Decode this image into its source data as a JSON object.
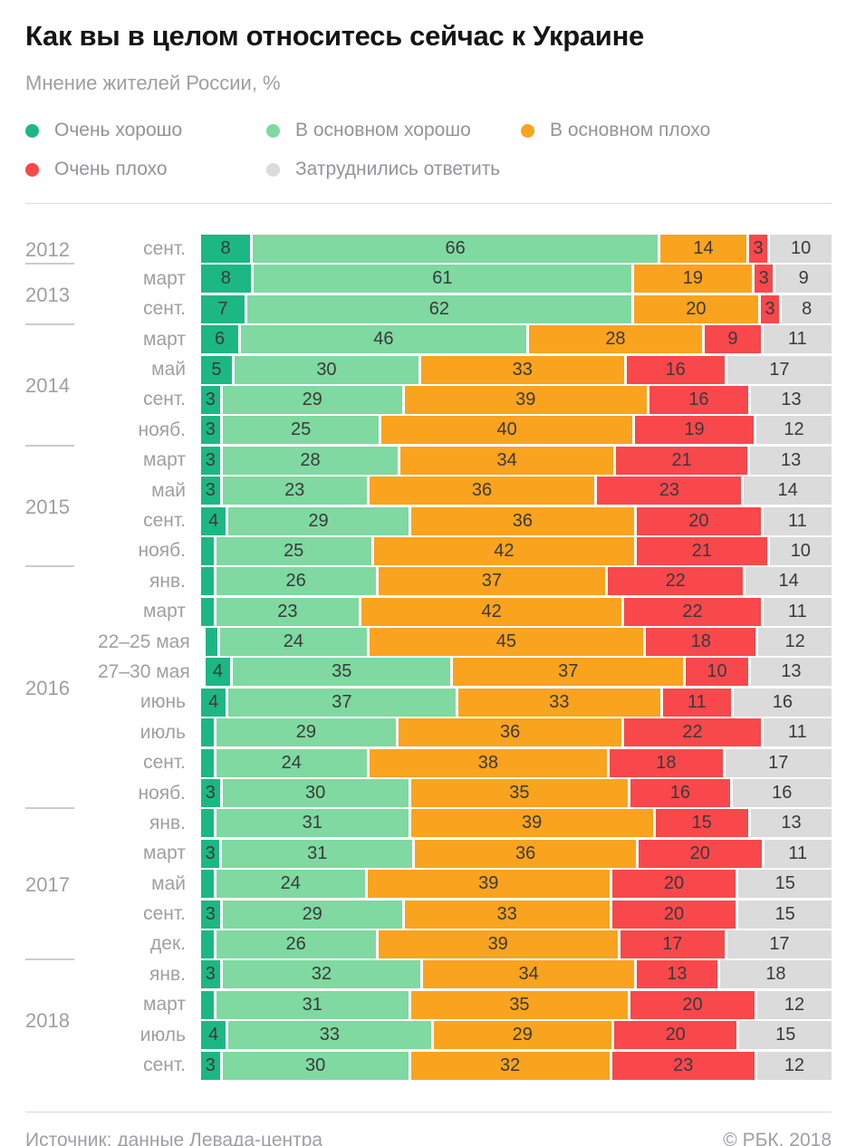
{
  "title": "Как вы в целом относитесь сейчас к Украине",
  "subtitle": "Мнение жителей России, %",
  "legend": [
    {
      "label": "Очень хорошо",
      "color": "#1db784",
      "name": "very-good"
    },
    {
      "label": "В основном хорошо",
      "color": "#7fd9a1",
      "name": "mostly-good"
    },
    {
      "label": "В основном плохо",
      "color": "#f9a31f",
      "name": "mostly-bad"
    },
    {
      "label": "Очень плохо",
      "color": "#f8484c",
      "name": "very-bad"
    },
    {
      "label": "Затруднились ответить",
      "color": "#dbdbdb",
      "name": "undecided"
    }
  ],
  "colors": {
    "very_good": "#1db784",
    "mostly_good": "#7fd9a1",
    "mostly_bad": "#f9a31f",
    "very_bad": "#f8484c",
    "undecided": "#dbdbdb",
    "value_text": "#3a3a3a",
    "muted_text": "#9f9fa3",
    "divider": "#dcdcdc"
  },
  "chart_data": {
    "type": "bar",
    "orientation": "horizontal-stacked",
    "series_names": [
      "Очень хорошо",
      "В основном хорошо",
      "В основном плохо",
      "Очень плохо",
      "Затруднились ответить"
    ],
    "segment_colors": [
      "#1db784",
      "#7fd9a1",
      "#f9a31f",
      "#f8484c",
      "#dbdbdb"
    ],
    "segment_names": [
      "segment-very-good",
      "segment-mostly-good",
      "segment-mostly-bad",
      "segment-very-bad",
      "segment-undecided"
    ],
    "note": "first_hidden=true means the thin first segment has no printed number; its value is estimated ~2",
    "groups": [
      {
        "year": "2012",
        "rows": [
          {
            "label": "сент.",
            "values": [
              8,
              66,
              14,
              3,
              10
            ]
          }
        ]
      },
      {
        "year": "2013",
        "rows": [
          {
            "label": "март",
            "values": [
              8,
              61,
              19,
              3,
              9
            ]
          },
          {
            "label": "сент.",
            "values": [
              7,
              62,
              20,
              3,
              8
            ]
          }
        ]
      },
      {
        "year": "2014",
        "rows": [
          {
            "label": "март",
            "values": [
              6,
              46,
              28,
              9,
              11
            ]
          },
          {
            "label": "май",
            "values": [
              5,
              30,
              33,
              16,
              17
            ]
          },
          {
            "label": "сент.",
            "values": [
              3,
              29,
              39,
              16,
              13
            ]
          },
          {
            "label": "нояб.",
            "values": [
              3,
              25,
              40,
              19,
              12
            ]
          }
        ]
      },
      {
        "year": "2015",
        "rows": [
          {
            "label": "март",
            "values": [
              3,
              28,
              34,
              21,
              13
            ]
          },
          {
            "label": "май",
            "values": [
              3,
              23,
              36,
              23,
              14
            ]
          },
          {
            "label": "сент.",
            "values": [
              4,
              29,
              36,
              20,
              11
            ]
          },
          {
            "label": "нояб.",
            "values": [
              2,
              25,
              42,
              21,
              10
            ],
            "first_hidden": true
          }
        ]
      },
      {
        "year": "2016",
        "rows": [
          {
            "label": "янв.",
            "values": [
              2,
              26,
              37,
              22,
              14
            ],
            "first_hidden": true
          },
          {
            "label": "март",
            "values": [
              2,
              23,
              42,
              22,
              11
            ],
            "first_hidden": true
          },
          {
            "label": "22–25 мая",
            "values": [
              2,
              24,
              45,
              18,
              12
            ],
            "first_hidden": true
          },
          {
            "label": "27–30 мая",
            "values": [
              4,
              35,
              37,
              10,
              13
            ]
          },
          {
            "label": "июнь",
            "values": [
              4,
              37,
              33,
              11,
              16
            ]
          },
          {
            "label": "июль",
            "values": [
              2,
              29,
              36,
              22,
              11
            ],
            "first_hidden": true
          },
          {
            "label": "сент.",
            "values": [
              2,
              24,
              38,
              18,
              17
            ],
            "first_hidden": true
          },
          {
            "label": "нояб.",
            "values": [
              3,
              30,
              35,
              16,
              16
            ]
          }
        ]
      },
      {
        "year": "2017",
        "rows": [
          {
            "label": "янв.",
            "values": [
              2,
              31,
              39,
              15,
              13
            ],
            "first_hidden": true
          },
          {
            "label": "март",
            "values": [
              3,
              31,
              36,
              20,
              11
            ]
          },
          {
            "label": "май",
            "values": [
              2,
              24,
              39,
              20,
              15
            ],
            "first_hidden": true
          },
          {
            "label": "сент.",
            "values": [
              3,
              29,
              33,
              20,
              15
            ]
          },
          {
            "label": "дек.",
            "values": [
              2,
              26,
              39,
              17,
              17
            ],
            "first_hidden": true
          }
        ]
      },
      {
        "year": "2018",
        "rows": [
          {
            "label": "янв.",
            "values": [
              3,
              32,
              34,
              13,
              18
            ]
          },
          {
            "label": "март",
            "values": [
              2,
              31,
              35,
              20,
              12
            ],
            "first_hidden": true
          },
          {
            "label": "июль",
            "values": [
              4,
              33,
              29,
              20,
              15
            ]
          },
          {
            "label": "сент.",
            "values": [
              3,
              30,
              32,
              23,
              12
            ]
          }
        ]
      }
    ]
  },
  "footer": {
    "source": "Источник: данные Левада-центра",
    "copyright": "© РБК, 2018"
  }
}
